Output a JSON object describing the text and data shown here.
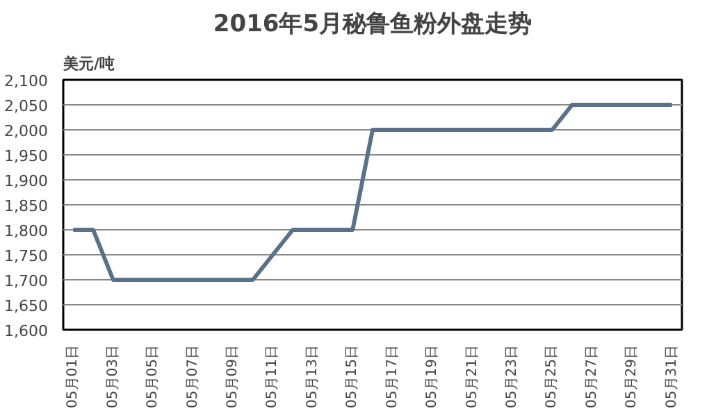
{
  "chart_data": {
    "type": "line",
    "title": "2016年5月秘鲁鱼粉外盘走势",
    "ylabel": "美元/吨",
    "categories": [
      "05月01日",
      null,
      "05月03日",
      null,
      "05月05日",
      null,
      "05月07日",
      null,
      "05月09日",
      null,
      "05月11日",
      null,
      "05月13日",
      null,
      "05月15日",
      null,
      "05月17日",
      null,
      "05月19日",
      null,
      "05月21日",
      null,
      "05月23日",
      null,
      "05月25日",
      null,
      "05月27日",
      null,
      "05月29日",
      null,
      "05月31日"
    ],
    "series": [
      {
        "color": "#5b7189",
        "values": [
          1800,
          1800,
          1700,
          1700,
          1700,
          1700,
          1700,
          1700,
          1700,
          1700,
          1750,
          1800,
          1800,
          1800,
          1800,
          2000,
          2000,
          2000,
          2000,
          2000,
          2000,
          2000,
          2000,
          2000,
          2000,
          2050,
          2050,
          2050,
          2050,
          2050,
          2050
        ]
      }
    ],
    "ylim": [
      1600,
      2100
    ],
    "yticks": [
      {
        "value": 1600,
        "label": "1,600"
      },
      {
        "value": 1650,
        "label": "1,650"
      },
      {
        "value": 1700,
        "label": "1,700"
      },
      {
        "value": 1750,
        "label": "1,750"
      },
      {
        "value": 1800,
        "label": "1,800"
      },
      {
        "value": 1850,
        "label": "1,850"
      },
      {
        "value": 1900,
        "label": "1,900"
      },
      {
        "value": 1950,
        "label": "1,950"
      },
      {
        "value": 2000,
        "label": "2,000"
      },
      {
        "value": 2050,
        "label": "2,050"
      },
      {
        "value": 2100,
        "label": "2,100"
      }
    ],
    "grid": "y",
    "marker": "none",
    "line_style": "solid"
  }
}
